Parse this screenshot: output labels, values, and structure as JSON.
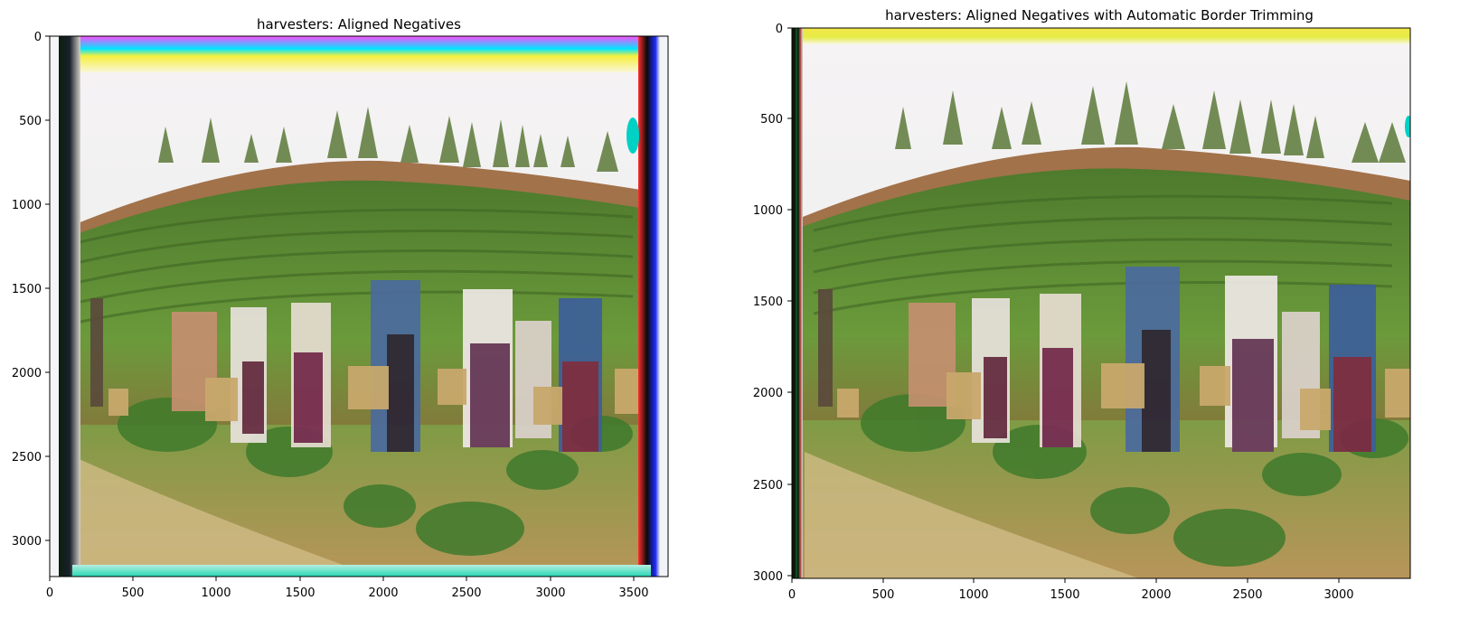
{
  "figure": {
    "panels": [
      {
        "title": "harvesters: Aligned Negatives",
        "x_ticks": [
          "0",
          "500",
          "1000",
          "1500",
          "2000",
          "2500",
          "3000",
          "3500"
        ],
        "y_ticks": [
          "0",
          "500",
          "1000",
          "1500",
          "2000",
          "2500",
          "3000"
        ],
        "image_description": "Colorized photograph of tea harvesters standing in a field with misaligned color channel borders"
      },
      {
        "title": "harvesters: Aligned Negatives with Automatic Border Trimming",
        "x_ticks": [
          "0",
          "500",
          "1000",
          "1500",
          "2000",
          "2500",
          "3000"
        ],
        "y_ticks": [
          "0",
          "500",
          "1000",
          "1500",
          "2000",
          "2500",
          "3000"
        ],
        "image_description": "Same photograph with borders trimmed"
      }
    ]
  },
  "colors": {
    "sky": "#eef1ee",
    "field_green": "#5f8f35",
    "soil": "#a0693f",
    "foreground": "#7b8f50",
    "border_magenta": "#ff3dff",
    "border_yellow": "#f5f04a",
    "border_cyan": "#21d4b3",
    "border_blue": "#2443ff"
  }
}
